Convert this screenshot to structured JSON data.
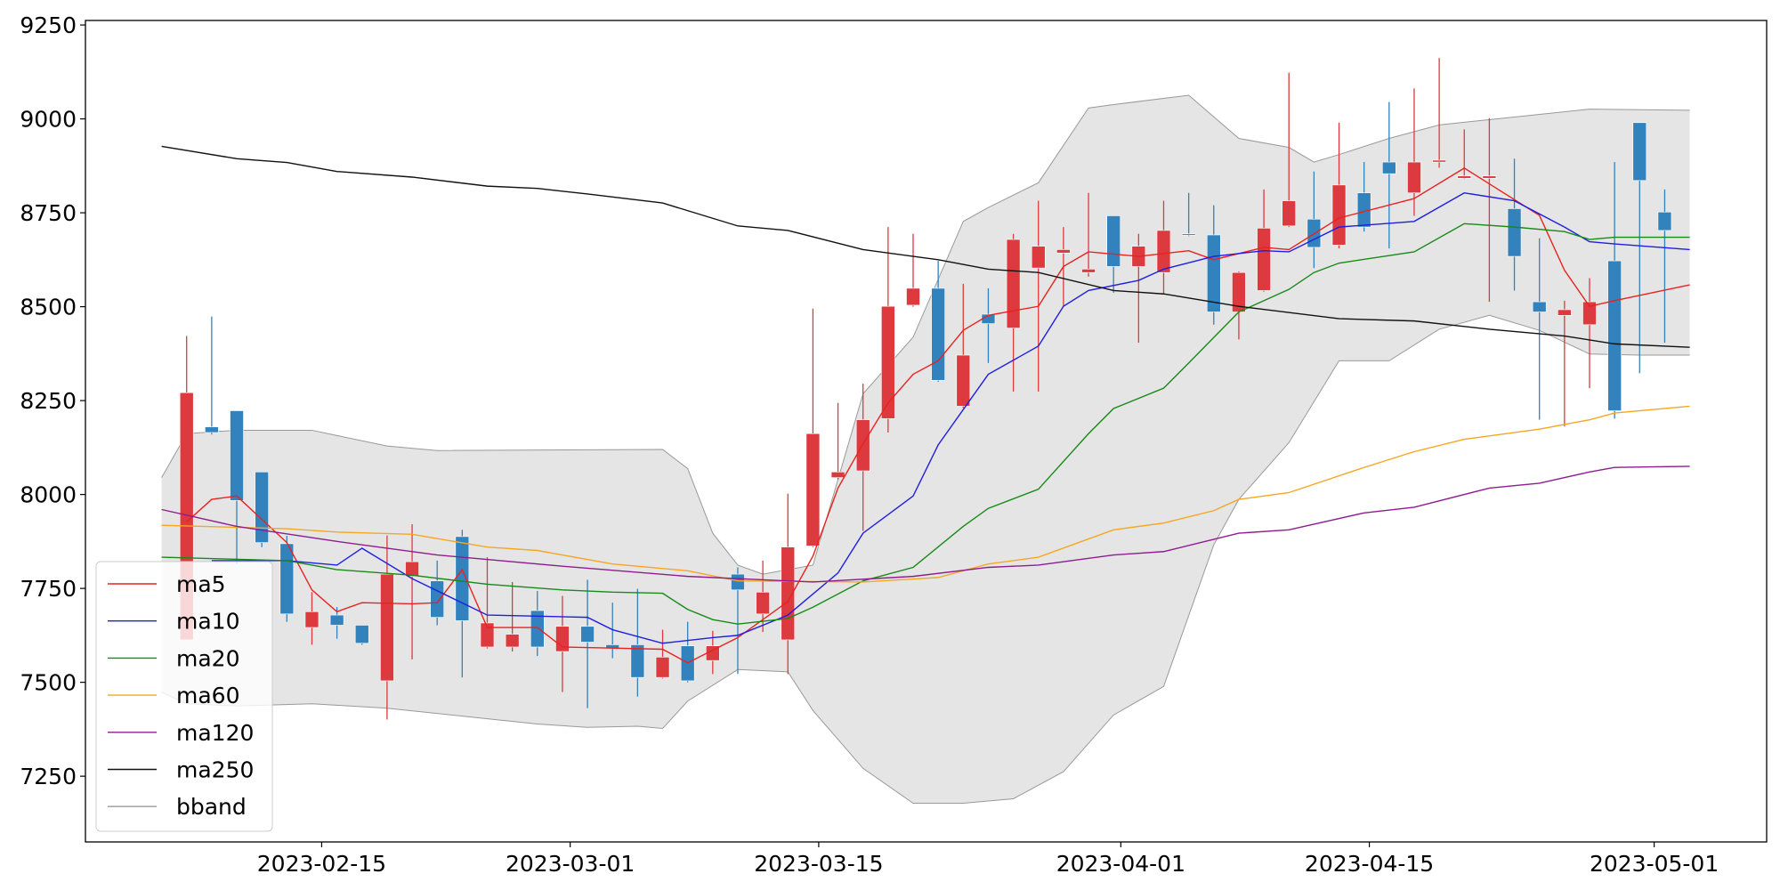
{
  "chart_data": {
    "type": "candlestick",
    "xlim": [
      -3.04,
      64.07
    ],
    "ylim": [
      7075,
      9262
    ],
    "yticks": [
      7250,
      7500,
      7750,
      8000,
      8250,
      8500,
      8750,
      9000,
      9250
    ],
    "xticks": [
      {
        "value": 6.39,
        "label": "2023-02-15"
      },
      {
        "value": 16.31,
        "label": "2023-03-01"
      },
      {
        "value": 26.23,
        "label": "2023-03-15"
      },
      {
        "value": 38.29,
        "label": "2023-04-01"
      },
      {
        "value": 48.21,
        "label": "2023-04-15"
      },
      {
        "value": 59.58,
        "label": "2023-05-01"
      }
    ],
    "up_color": "#dc3a3e",
    "down_color": "#3182bd",
    "candles": {
      "open": [
        null,
        7613,
        8180,
        8223,
        8060,
        7869,
        7646,
        7679,
        7652,
        7504,
        7782,
        7770,
        7888,
        7594,
        7594,
        7691,
        7582,
        7649,
        7600,
        7600,
        7513,
        7597,
        7558,
        7788,
        7682,
        7613,
        7863,
        8045,
        8063,
        8202,
        8504,
        8549,
        8235,
        8480,
        8443,
        8603,
        8643,
        8591,
        8742,
        8607,
        8591,
        8694,
        8691,
        8486,
        8543,
        8715,
        8733,
        8664,
        8803,
        8885,
        8803,
        8885,
        8842,
        8842,
        8761,
        8513,
        8477,
        8452,
        8622,
        8990,
        8752,
        null
      ],
      "high": [
        null,
        8422,
        8474,
        8223,
        8060,
        7890,
        7740,
        7700,
        7652,
        7891,
        7921,
        7824,
        7906,
        7833,
        7767,
        7743,
        7730,
        7773,
        7712,
        7749,
        7640,
        7661,
        7637,
        7806,
        7824,
        8002,
        8495,
        8244,
        8295,
        8712,
        8694,
        8622,
        8561,
        8549,
        8694,
        8782,
        8712,
        8803,
        8742,
        8694,
        8782,
        8803,
        8770,
        8594,
        8812,
        9123,
        8860,
        8990,
        8885,
        9045,
        9081,
        9162,
        8972,
        9002,
        8894,
        8682,
        8516,
        8576,
        8885,
        8990,
        8812,
        null
      ],
      "low": [
        null,
        7613,
        8160,
        7815,
        7860,
        7661,
        7600,
        7616,
        7600,
        7401,
        7561,
        7652,
        7513,
        7590,
        7582,
        7570,
        7474,
        7431,
        7564,
        7462,
        7510,
        7500,
        7522,
        7522,
        7634,
        7522,
        7860,
        8040,
        7903,
        8165,
        8500,
        8300,
        8230,
        8350,
        8274,
        8274,
        8501,
        8580,
        8537,
        8404,
        8534,
        8688,
        8452,
        8413,
        8540,
        8712,
        8603,
        8655,
        8700,
        8655,
        8742,
        8870,
        8840,
        8513,
        8543,
        8199,
        8181,
        8283,
        8202,
        8323,
        8404,
        null
      ],
      "close": [
        null,
        8271,
        8165,
        7984,
        7872,
        7682,
        7688,
        7652,
        7604,
        7788,
        7821,
        7673,
        7664,
        7658,
        7628,
        7594,
        7649,
        7607,
        7591,
        7513,
        7567,
        7504,
        7597,
        7746,
        7740,
        7860,
        8162,
        8060,
        8199,
        8501,
        8549,
        8304,
        8371,
        8455,
        8679,
        8661,
        8652,
        8600,
        8607,
        8661,
        8703,
        8691,
        8486,
        8591,
        8709,
        8782,
        8658,
        8824,
        8712,
        8854,
        8885,
        8890,
        8848,
        8848,
        8634,
        8486,
        8492,
        8513,
        8223,
        8836,
        8703,
        null
      ]
    },
    "band": {
      "name": "bband",
      "color": "#e5e5e5",
      "edge": "#999999",
      "upper": {
        "x": [
          0,
          1,
          3,
          6,
          9,
          11,
          20,
          21,
          22,
          23,
          24,
          26,
          28,
          30,
          32,
          33,
          35,
          37,
          38,
          41,
          43,
          45,
          46,
          47,
          49,
          51,
          54,
          57,
          61
        ],
        "values": [
          8045,
          8162,
          8171,
          8171,
          8129,
          8117,
          8120,
          8069,
          7897,
          7812,
          7788,
          7812,
          8268,
          8419,
          8727,
          8764,
          8830,
          9029,
          9038,
          9063,
          8948,
          8924,
          8885,
          8905,
          8948,
          8984,
          9005,
          9026,
          9023
        ]
      },
      "lower": {
        "x": [
          0,
          1,
          3,
          6,
          9,
          12,
          15,
          17,
          19,
          20,
          21,
          23,
          25,
          26,
          28,
          30,
          32,
          34,
          36,
          38,
          40,
          42,
          43,
          45,
          47,
          49,
          51,
          53,
          55,
          57,
          59,
          61
        ],
        "values": [
          7474,
          7443,
          7437,
          7443,
          7431,
          7410,
          7389,
          7380,
          7383,
          7377,
          7450,
          7534,
          7528,
          7425,
          7271,
          7178,
          7178,
          7190,
          7262,
          7413,
          7489,
          7866,
          7987,
          8138,
          8356,
          8356,
          8440,
          8477,
          8437,
          8374,
          8371,
          8371
        ]
      }
    },
    "series": [
      {
        "name": "ma5",
        "color": "#e8231f",
        "x": [
          1,
          2,
          3,
          5,
          6,
          7,
          8,
          10,
          11,
          12,
          13,
          15,
          16,
          18,
          20,
          21,
          23,
          25,
          26,
          27,
          28,
          29,
          30,
          31,
          32,
          33,
          35,
          36,
          37,
          39,
          41,
          42,
          44,
          45,
          47,
          50,
          52,
          53,
          55,
          56,
          57,
          58,
          61
        ],
        "values": [
          7927,
          7987,
          7996,
          7872,
          7746,
          7688,
          7712,
          7709,
          7712,
          7800,
          7646,
          7646,
          7594,
          7591,
          7588,
          7552,
          7619,
          7715,
          7836,
          8017,
          8135,
          8244,
          8320,
          8356,
          8437,
          8477,
          8501,
          8607,
          8646,
          8634,
          8649,
          8625,
          8658,
          8652,
          8736,
          8788,
          8869,
          8827,
          8743,
          8597,
          8501,
          8516,
          8558
        ]
      },
      {
        "name": "ma10",
        "color": "#1f1fe0",
        "x": [
          2,
          5,
          7,
          8,
          10,
          13,
          15,
          17,
          18,
          20,
          22,
          23,
          25,
          27,
          28,
          30,
          31,
          33,
          35,
          36,
          37,
          39,
          40,
          42,
          44,
          45,
          47,
          50,
          52,
          54,
          56,
          57,
          58,
          61
        ],
        "values": [
          7824,
          7824,
          7812,
          7857,
          7776,
          7679,
          7676,
          7673,
          7640,
          7604,
          7619,
          7625,
          7679,
          7791,
          7897,
          7996,
          8132,
          8320,
          8395,
          8501,
          8543,
          8570,
          8600,
          8634,
          8649,
          8646,
          8712,
          8727,
          8803,
          8782,
          8712,
          8673,
          8667,
          8652
        ]
      },
      {
        "name": "ma20",
        "color": "#178a17",
        "x": [
          0,
          5,
          7,
          10,
          13,
          16,
          18,
          20,
          21,
          22,
          23,
          25,
          26,
          28,
          30,
          32,
          33,
          35,
          37,
          38,
          40,
          41,
          43,
          45,
          46,
          47,
          50,
          52,
          54,
          56,
          57,
          58,
          61
        ],
        "values": [
          7833,
          7824,
          7800,
          7785,
          7761,
          7746,
          7740,
          7737,
          7694,
          7667,
          7655,
          7670,
          7700,
          7770,
          7806,
          7915,
          7963,
          8014,
          8162,
          8229,
          8283,
          8350,
          8486,
          8546,
          8591,
          8616,
          8646,
          8721,
          8712,
          8700,
          8679,
          8685,
          8685
        ]
      },
      {
        "name": "ma60",
        "color": "#f5a623",
        "x": [
          0,
          5,
          7,
          10,
          13,
          15,
          18,
          21,
          23,
          28,
          31,
          33,
          35,
          38,
          40,
          42,
          43,
          45,
          48,
          50,
          52,
          55,
          57,
          58,
          61
        ],
        "values": [
          7918,
          7909,
          7900,
          7894,
          7860,
          7851,
          7815,
          7797,
          7770,
          7767,
          7779,
          7815,
          7833,
          7906,
          7924,
          7957,
          7987,
          8005,
          8072,
          8114,
          8147,
          8174,
          8199,
          8217,
          8235
        ]
      },
      {
        "name": "ma120",
        "color": "#8e1d8e",
        "x": [
          0,
          3,
          7,
          11,
          16,
          21,
          26,
          30,
          33,
          35,
          38,
          40,
          43,
          45,
          48,
          50,
          53,
          55,
          57,
          58,
          61
        ],
        "values": [
          7960,
          7915,
          7875,
          7839,
          7809,
          7782,
          7767,
          7782,
          7806,
          7812,
          7839,
          7848,
          7897,
          7906,
          7951,
          7966,
          8017,
          8030,
          8060,
          8072,
          8075
        ]
      },
      {
        "name": "ma250",
        "color": "#111111",
        "x": [
          0,
          3,
          5,
          7,
          10,
          13,
          15,
          17,
          20,
          23,
          25,
          28,
          31,
          33,
          35,
          38,
          40,
          43,
          47,
          50,
          53,
          56,
          58,
          61
        ],
        "values": [
          8927,
          8894,
          8884,
          8860,
          8845,
          8821,
          8815,
          8800,
          8776,
          8715,
          8703,
          8652,
          8625,
          8600,
          8591,
          8543,
          8534,
          8501,
          8468,
          8462,
          8440,
          8422,
          8401,
          8392
        ]
      }
    ]
  }
}
